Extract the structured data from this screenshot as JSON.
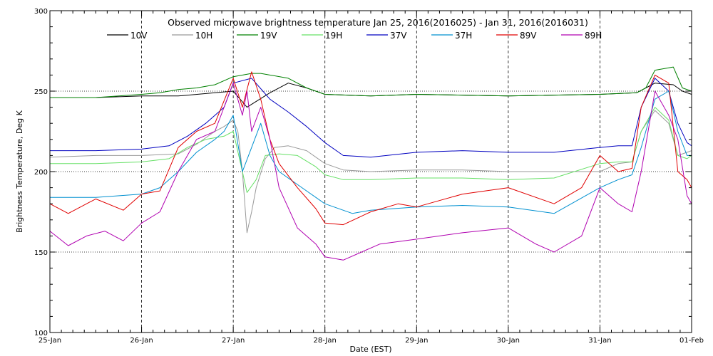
{
  "chart_data": {
    "type": "line",
    "title": "Observed microwave brightness temperature Jan 25, 2016(2016025) - Jan 31, 2016(2016031)",
    "xlabel": "Date (EST)",
    "ylabel": "Brightness Temperature, Deg K",
    "ylim": [
      100,
      300
    ],
    "yticks": [
      100,
      150,
      200,
      250,
      300
    ],
    "xlim": [
      0,
      7
    ],
    "x_tick_labels": [
      "25-Jan",
      "26-Jan",
      "27-Jan",
      "28-Jan",
      "29-Jan",
      "30-Jan",
      "31-Jan",
      "01-Feb"
    ],
    "grid": true,
    "legend_position": "top",
    "series": [
      {
        "name": "10V",
        "color": "#000000",
        "x": [
          0,
          0.5,
          1.0,
          1.4,
          1.8,
          2.0,
          2.15,
          2.4,
          2.6,
          2.8,
          3.0,
          3.5,
          4.0,
          5.0,
          6.0,
          6.4,
          6.5,
          6.6,
          6.8,
          6.9,
          7.0
        ],
        "values": [
          246,
          246,
          247,
          247,
          249,
          250,
          240,
          249,
          255,
          252,
          248,
          247,
          248,
          247,
          248,
          249,
          252,
          255,
          254,
          250,
          248
        ]
      },
      {
        "name": "10H",
        "color": "#999999",
        "x": [
          0,
          0.5,
          1.0,
          1.4,
          1.6,
          1.8,
          1.9,
          2.0,
          2.05,
          2.1,
          2.15,
          2.2,
          2.25,
          2.35,
          2.45,
          2.6,
          2.8,
          3.0,
          3.2,
          3.5,
          4.0,
          4.5,
          5.0,
          5.5,
          6.0,
          6.2,
          6.35,
          6.45,
          6.6,
          6.75,
          6.85,
          6.95,
          7.0
        ],
        "values": [
          209,
          210,
          210,
          211,
          217,
          225,
          228,
          232,
          225,
          200,
          162,
          175,
          190,
          208,
          215,
          216,
          213,
          205,
          201,
          200,
          201,
          201,
          200,
          200,
          200,
          205,
          206,
          225,
          238,
          230,
          210,
          212,
          213
        ]
      },
      {
        "name": "19V",
        "color": "#008000",
        "x": [
          0,
          0.5,
          1.0,
          1.2,
          1.4,
          1.6,
          1.8,
          2.0,
          2.2,
          2.3,
          2.6,
          2.8,
          3.0,
          3.5,
          4.0,
          5.0,
          6.0,
          6.4,
          6.5,
          6.6,
          6.8,
          6.9,
          7.0
        ],
        "values": [
          246,
          246,
          248,
          249,
          251,
          252,
          254,
          259,
          261,
          261,
          258,
          252,
          248,
          247,
          248,
          247,
          248,
          249,
          252,
          263,
          265,
          252,
          250
        ]
      },
      {
        "name": "19H",
        "color": "#66e066",
        "x": [
          0,
          0.5,
          1.0,
          1.3,
          1.5,
          1.7,
          1.9,
          2.0,
          2.1,
          2.15,
          2.25,
          2.35,
          2.5,
          2.7,
          2.9,
          3.0,
          3.2,
          3.5,
          4.0,
          4.5,
          5.0,
          5.5,
          6.0,
          6.2,
          6.35,
          6.45,
          6.6,
          6.75,
          6.85,
          6.95,
          7.0
        ],
        "values": [
          205,
          205,
          206,
          208,
          215,
          220,
          222,
          225,
          200,
          187,
          195,
          210,
          211,
          210,
          203,
          198,
          195,
          195,
          196,
          196,
          195,
          196,
          205,
          206,
          206,
          225,
          240,
          232,
          210,
          208,
          210
        ]
      },
      {
        "name": "37V",
        "color": "#0000c0",
        "x": [
          0,
          0.5,
          1.0,
          1.3,
          1.5,
          1.7,
          1.9,
          2.0,
          2.2,
          2.4,
          2.6,
          2.8,
          3.0,
          3.2,
          3.5,
          4.0,
          4.5,
          5.0,
          5.5,
          6.0,
          6.2,
          6.35,
          6.45,
          6.6,
          6.75,
          6.85,
          6.95,
          7.0
        ],
        "values": [
          213,
          213,
          214,
          216,
          222,
          230,
          240,
          255,
          258,
          245,
          237,
          228,
          218,
          210,
          209,
          212,
          213,
          212,
          212,
          215,
          216,
          216,
          240,
          258,
          250,
          230,
          218,
          216
        ]
      },
      {
        "name": "37H",
        "color": "#0090d0",
        "x": [
          0,
          0.5,
          1.0,
          1.2,
          1.4,
          1.6,
          1.8,
          1.9,
          2.0,
          2.1,
          2.2,
          2.3,
          2.4,
          2.5,
          2.7,
          3.0,
          3.3,
          3.5,
          4.0,
          4.5,
          5.0,
          5.5,
          6.0,
          6.2,
          6.35,
          6.45,
          6.6,
          6.75,
          6.85,
          6.95,
          7.0
        ],
        "values": [
          184,
          184,
          186,
          190,
          200,
          212,
          220,
          225,
          235,
          200,
          215,
          230,
          210,
          200,
          192,
          180,
          174,
          176,
          178,
          179,
          178,
          174,
          190,
          195,
          198,
          215,
          245,
          250,
          225,
          210,
          210
        ]
      },
      {
        "name": "89V",
        "color": "#e00000",
        "x": [
          0,
          0.2,
          0.5,
          0.8,
          1.0,
          1.2,
          1.4,
          1.6,
          1.8,
          2.0,
          2.1,
          2.2,
          2.3,
          2.4,
          2.5,
          2.7,
          2.9,
          3.0,
          3.2,
          3.5,
          3.8,
          4.0,
          4.5,
          5.0,
          5.5,
          5.8,
          6.0,
          6.2,
          6.35,
          6.45,
          6.6,
          6.75,
          6.85,
          6.95,
          7.0
        ],
        "values": [
          180,
          174,
          183,
          176,
          186,
          188,
          215,
          225,
          230,
          258,
          240,
          262,
          245,
          220,
          205,
          190,
          177,
          168,
          167,
          175,
          180,
          178,
          186,
          190,
          180,
          190,
          210,
          200,
          202,
          240,
          260,
          255,
          200,
          195,
          190
        ]
      },
      {
        "name": "89H",
        "color": "#b000b0",
        "x": [
          0,
          0.2,
          0.4,
          0.6,
          0.8,
          1.0,
          1.2,
          1.4,
          1.6,
          1.8,
          2.0,
          2.1,
          2.15,
          2.2,
          2.3,
          2.4,
          2.5,
          2.7,
          2.9,
          3.0,
          3.2,
          3.4,
          3.6,
          4.0,
          4.5,
          5.0,
          5.3,
          5.5,
          5.8,
          6.0,
          6.2,
          6.35,
          6.45,
          6.6,
          6.75,
          6.85,
          6.95,
          7.0
        ],
        "values": [
          163,
          154,
          160,
          163,
          157,
          168,
          175,
          200,
          220,
          225,
          255,
          235,
          250,
          225,
          240,
          220,
          190,
          165,
          155,
          147,
          145,
          150,
          155,
          158,
          162,
          165,
          155,
          150,
          160,
          190,
          180,
          175,
          200,
          250,
          235,
          220,
          185,
          180
        ]
      }
    ]
  }
}
